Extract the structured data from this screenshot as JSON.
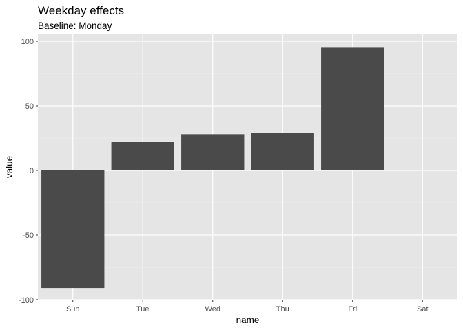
{
  "chart_data": {
    "type": "bar",
    "title": "Weekday effects",
    "subtitle": "Baseline: Monday",
    "xlabel": "name",
    "ylabel": "value",
    "categories": [
      "Sun",
      "Tue",
      "Wed",
      "Thu",
      "Fri",
      "Sat"
    ],
    "values": [
      -91,
      22,
      28,
      29,
      95,
      0.5
    ],
    "ylim": [
      -100,
      100
    ],
    "yticks": [
      -100,
      -50,
      0,
      50,
      100
    ],
    "ytick_labels": [
      "-100",
      "-50",
      "0",
      "50",
      "100"
    ],
    "grid": true,
    "legend": "none",
    "colors": {
      "bar": "#4a4a4a",
      "panel": "#e5e5e5",
      "grid_major": "#ffffff",
      "grid_minor": "#f2f2f2",
      "tick_text": "#4d4d4d"
    }
  }
}
